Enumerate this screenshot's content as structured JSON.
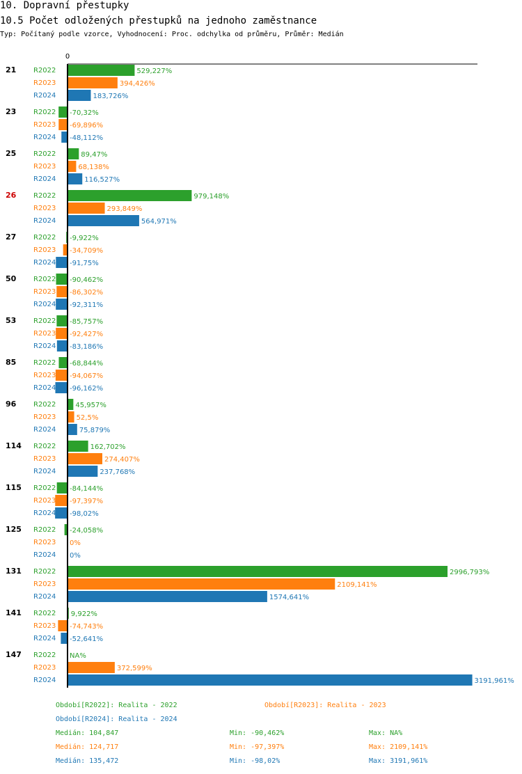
{
  "header": {
    "title": "10. Dopravní přestupky",
    "subtitle": "10.5 Počet odložených přestupků na jednoho zaměstnance",
    "info": "Typ: Počítaný podle vzorce, Vyhodnocení: Proc. odchylka od průměru, Průměr: Medián"
  },
  "colors": {
    "R2022": "#2ca02c",
    "R2023": "#ff7f0e",
    "R2024": "#1f77b4",
    "highlight": "#cc0000"
  },
  "chart_data": {
    "type": "bar",
    "orientation": "horizontal",
    "axis_zero_label": "0",
    "series_names": [
      "R2022",
      "R2023",
      "R2024"
    ],
    "highlight_category": "26",
    "groups": [
      {
        "label": "21",
        "values": [
          529.227,
          394.426,
          183.726
        ],
        "labels": [
          "529,227%",
          "394,426%",
          "183,726%"
        ]
      },
      {
        "label": "23",
        "values": [
          -70.32,
          -69.896,
          -48.112
        ],
        "labels": [
          "-70,32%",
          "-69,896%",
          "-48,112%"
        ]
      },
      {
        "label": "25",
        "values": [
          89.47,
          68.138,
          116.527
        ],
        "labels": [
          "89,47%",
          "68,138%",
          "116,527%"
        ]
      },
      {
        "label": "26",
        "values": [
          979.148,
          293.849,
          564.971
        ],
        "labels": [
          "979,148%",
          "293,849%",
          "564,971%"
        ]
      },
      {
        "label": "27",
        "values": [
          -9.922,
          -34.709,
          -91.75
        ],
        "labels": [
          "-9,922%",
          "-34,709%",
          "-91,75%"
        ]
      },
      {
        "label": "50",
        "values": [
          -90.462,
          -86.302,
          -92.311
        ],
        "labels": [
          "-90,462%",
          "-86,302%",
          "-92,311%"
        ]
      },
      {
        "label": "53",
        "values": [
          -85.757,
          -92.427,
          -83.186
        ],
        "labels": [
          "-85,757%",
          "-92,427%",
          "-83,186%"
        ]
      },
      {
        "label": "85",
        "values": [
          -68.844,
          -94.067,
          -96.162
        ],
        "labels": [
          "-68,844%",
          "-94,067%",
          "-96,162%"
        ]
      },
      {
        "label": "96",
        "values": [
          45.957,
          52.5,
          75.879
        ],
        "labels": [
          "45,957%",
          "52,5%",
          "75,879%"
        ]
      },
      {
        "label": "114",
        "values": [
          162.702,
          274.407,
          237.768
        ],
        "labels": [
          "162,702%",
          "274,407%",
          "237,768%"
        ]
      },
      {
        "label": "115",
        "values": [
          -84.144,
          -97.397,
          -98.02
        ],
        "labels": [
          "-84,144%",
          "-97,397%",
          "-98,02%"
        ]
      },
      {
        "label": "125",
        "values": [
          -24.058,
          0,
          0
        ],
        "labels": [
          "-24,058%",
          "0%",
          "0%"
        ]
      },
      {
        "label": "131",
        "values": [
          2996.793,
          2109.141,
          1574.641
        ],
        "labels": [
          "2996,793%",
          "2109,141%",
          "1574,641%"
        ]
      },
      {
        "label": "141",
        "values": [
          9.922,
          -74.743,
          -52.641
        ],
        "labels": [
          "9,922%",
          "-74,743%",
          "-52,641%"
        ]
      },
      {
        "label": "147",
        "values": [
          null,
          372.599,
          3191.961
        ],
        "labels": [
          "NA%",
          "372,599%",
          "3191,961%"
        ]
      }
    ]
  },
  "legend": {
    "periods": [
      "Období[R2022]: Realita - 2022",
      "Období[R2023]: Realita - 2023",
      "Období[R2024]: Realita - 2024"
    ],
    "stats": [
      {
        "median": "Medián: 104,847",
        "min": "Min: -90,462%",
        "max": "Max: NA%"
      },
      {
        "median": "Medián: 124,717",
        "min": "Min: -97,397%",
        "max": "Max: 2109,141%"
      },
      {
        "median": "Medián: 135,472",
        "min": "Min: -98,02%",
        "max": "Max: 3191,961%"
      }
    ]
  }
}
